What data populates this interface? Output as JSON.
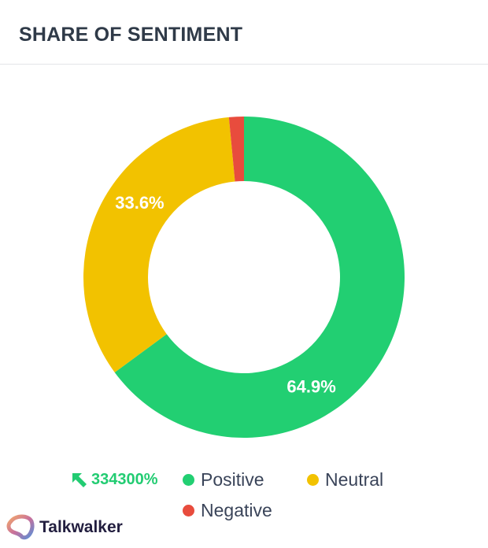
{
  "header": {
    "title": "SHARE OF SENTIMENT"
  },
  "change": {
    "value": "334300%",
    "direction": "up",
    "icon": "arrow-up-left-icon",
    "color": "#22cc72"
  },
  "brand": {
    "name": "Talkwalker"
  },
  "chart_data": {
    "type": "pie",
    "donut": true,
    "categories": [
      "Positive",
      "Neutral",
      "Negative"
    ],
    "values": [
      64.9,
      33.6,
      1.5
    ],
    "data_labels": [
      "64.9%",
      "33.6%",
      ""
    ],
    "colors": [
      "#22cf72",
      "#f2c200",
      "#e84c3d"
    ],
    "legend": "bottom"
  }
}
